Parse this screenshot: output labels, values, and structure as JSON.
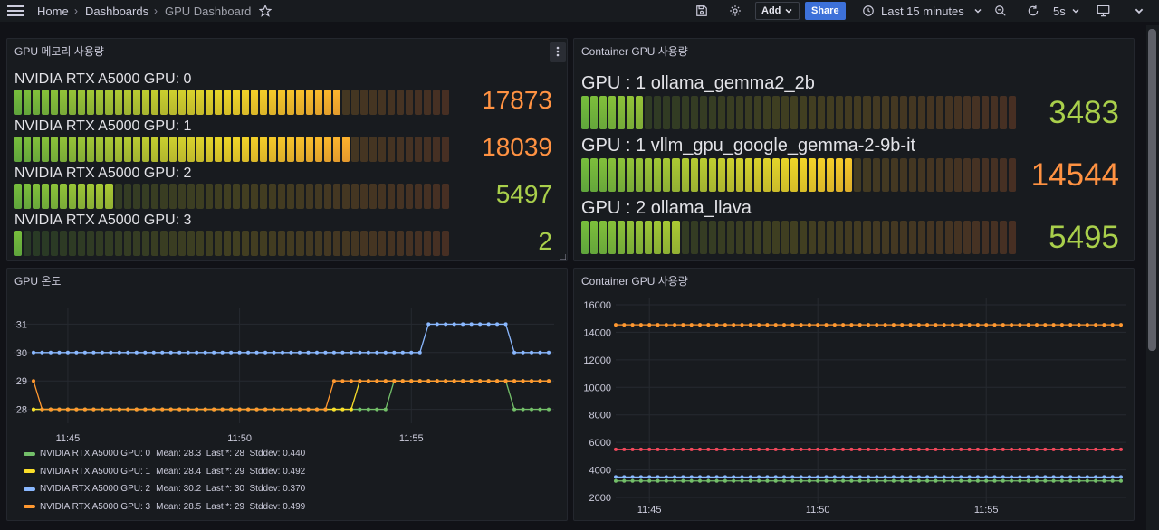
{
  "breadcrumb": {
    "home": "Home",
    "dashboards": "Dashboards",
    "current": "GPU Dashboard",
    "separator": "›"
  },
  "toolbar": {
    "add_label": "Add",
    "share_label": "Share",
    "time_range": "Last 15 minutes",
    "refresh_interval": "5s"
  },
  "colors": {
    "green": "#73bf69",
    "yellow": "#fade2a",
    "blue": "#8ab8ff",
    "orange": "#ff9830",
    "red": "#f2495c",
    "value_green": "#a9cf4b",
    "value_orange": "#ff9242"
  },
  "panel_gpu_memory": {
    "title": "GPU 메모리 사용량",
    "menu_icon": "kebab-menu-icon",
    "bars": [
      {
        "label": "NVIDIA RTX A5000 GPU: 0",
        "value": "17873",
        "fill": 0.75,
        "color_key": "value_orange"
      },
      {
        "label": "NVIDIA RTX A5000 GPU: 1",
        "value": "18039",
        "fill": 0.775,
        "color_key": "value_orange"
      },
      {
        "label": "NVIDIA RTX A5000 GPU: 2",
        "value": "5497",
        "fill": 0.225,
        "color_key": "value_green"
      },
      {
        "label": "NVIDIA RTX A5000 GPU: 3",
        "value": "2",
        "fill": 0.025,
        "color_key": "value_green"
      }
    ]
  },
  "panel_container_gauge": {
    "title": "Container GPU 사용량",
    "bars": [
      {
        "label": "GPU : 1 ollama_gemma2_2b",
        "value": "3483",
        "fill": 0.15,
        "color_key": "value_green"
      },
      {
        "label": "GPU : 1 vllm_gpu_google_gemma-2-9b-it",
        "value": "14544",
        "fill": 0.625,
        "color_key": "value_orange"
      },
      {
        "label": "GPU : 2 ollama_llava",
        "value": "5495",
        "fill": 0.225,
        "color_key": "value_green"
      }
    ]
  },
  "panel_gpu_temp": {
    "title": "GPU 온도",
    "legend": [
      {
        "name": "NVIDIA RTX A5000 GPU: 0",
        "stats": "Mean: 28.3  Last *: 28  Stddev: 0.440",
        "color_key": "green"
      },
      {
        "name": "NVIDIA RTX A5000 GPU: 1",
        "stats": "Mean: 28.4  Last *: 29  Stddev: 0.492",
        "color_key": "yellow"
      },
      {
        "name": "NVIDIA RTX A5000 GPU: 2",
        "stats": "Mean: 30.2  Last *: 30  Stddev: 0.370",
        "color_key": "blue"
      },
      {
        "name": "NVIDIA RTX A5000 GPU: 3",
        "stats": "Mean: 28.5  Last *: 29  Stddev: 0.499",
        "color_key": "orange"
      }
    ]
  },
  "panel_container_timeseries": {
    "title": "Container GPU 사용량"
  },
  "chart_data": [
    {
      "type": "line",
      "title": "GPU 온도",
      "xlabel": "",
      "ylabel": "",
      "x_ticks": [
        "11:45",
        "11:50",
        "11:55"
      ],
      "x_tick_index": [
        4,
        24,
        44
      ],
      "y_ticks": [
        28,
        29,
        30,
        31
      ],
      "ylim": [
        27.7,
        31.3
      ],
      "point_count": 61,
      "series": [
        {
          "name": "NVIDIA RTX A5000 GPU: 0",
          "color_key": "green",
          "segments": [
            [
              0,
              41,
              28
            ],
            [
              42,
              55,
              29
            ],
            [
              56,
              60,
              28
            ]
          ]
        },
        {
          "name": "NVIDIA RTX A5000 GPU: 1",
          "color_key": "yellow",
          "segments": [
            [
              0,
              37,
              28
            ],
            [
              38,
              60,
              29
            ]
          ]
        },
        {
          "name": "NVIDIA RTX A5000 GPU: 2",
          "color_key": "blue",
          "segments": [
            [
              0,
              45,
              30
            ],
            [
              46,
              55,
              31
            ],
            [
              56,
              60,
              30
            ]
          ]
        },
        {
          "name": "NVIDIA RTX A5000 GPU: 3",
          "color_key": "orange",
          "segments": [
            [
              0,
              0,
              29
            ],
            [
              1,
              34,
              28
            ],
            [
              35,
              60,
              29
            ]
          ]
        }
      ]
    },
    {
      "type": "line",
      "title": "Container GPU 사용량",
      "xlabel": "",
      "ylabel": "",
      "x_ticks": [
        "11:45",
        "11:50",
        "11:55"
      ],
      "x_tick_index": [
        4,
        24,
        44
      ],
      "y_ticks": [
        2000,
        4000,
        6000,
        8000,
        10000,
        12000,
        14000,
        16000
      ],
      "ylim": [
        2000,
        16000
      ],
      "point_count": 61,
      "series": [
        {
          "name": "GPU : 1 vllm_gpu_google_gemma-2-9b-it",
          "color_key": "orange",
          "value": 14544
        },
        {
          "name": "GPU : 2 ollama_llava",
          "color_key": "red",
          "value": 5495
        },
        {
          "name": "GPU : 1 ollama_gemma2_2b",
          "color_key": "blue",
          "value": 3483
        },
        {
          "name": "GPU : 1 ollama_gemma2_2b (2)",
          "color_key": "green",
          "value": 3200
        }
      ]
    }
  ]
}
